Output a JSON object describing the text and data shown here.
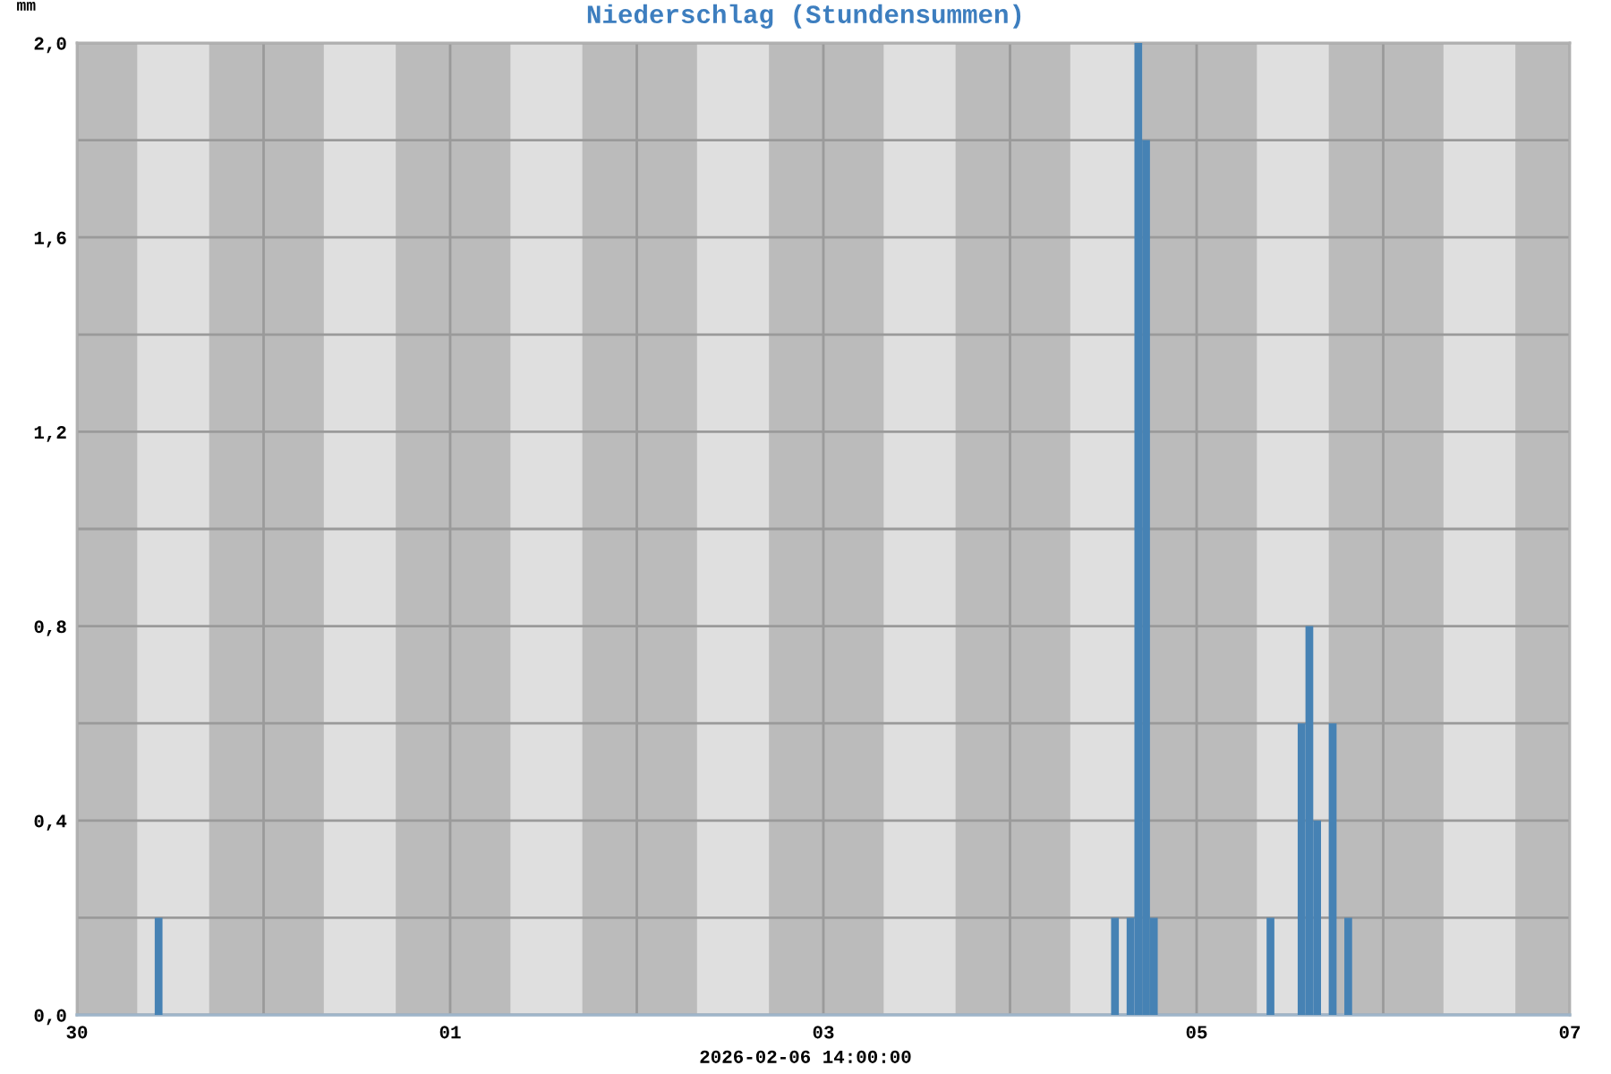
{
  "chart_data": {
    "type": "bar",
    "title": "Niederschlag (Stundensummen)",
    "ylabel": "mm",
    "annotations": [
      "2026-02-06 14:00:00"
    ],
    "x": [
      "2026-01-30T10:30",
      "2026-02-04T13:30",
      "2026-02-04T15:30",
      "2026-02-04T16:30",
      "2026-02-04T17:30",
      "2026-02-04T18:30",
      "2026-02-05T09:30",
      "2026-02-05T13:30",
      "2026-02-05T14:30",
      "2026-02-05T15:30",
      "2026-02-05T17:30",
      "2026-02-05T19:30"
    ],
    "values": [
      0.2,
      0.2,
      0.2,
      2.0,
      1.8,
      0.2,
      0.2,
      0.6,
      0.8,
      0.4,
      0.6,
      0.2
    ],
    "color": "#4682b4",
    "xlim": [
      "2026-01-30",
      "2026-02-07"
    ],
    "xticks": [
      {
        "value": "2026-01-30",
        "label": "30"
      },
      {
        "value": "2026-01-31",
        "label": null
      },
      {
        "value": "2026-02-01",
        "label": "01"
      },
      {
        "value": "2026-02-02",
        "label": null
      },
      {
        "value": "2026-02-03",
        "label": "03"
      },
      {
        "value": "2026-02-04",
        "label": null
      },
      {
        "value": "2026-02-05",
        "label": "05"
      },
      {
        "value": "2026-02-06",
        "label": null
      },
      {
        "value": "2026-02-07",
        "label": "07"
      }
    ],
    "ylim": [
      0,
      2
    ],
    "yticks": [
      {
        "value": 0,
        "label": "0,0"
      },
      {
        "value": 0.2,
        "label": null
      },
      {
        "value": 0.4,
        "label": "0,4"
      },
      {
        "value": 0.6,
        "label": null
      },
      {
        "value": 0.8,
        "label": "0,8"
      },
      {
        "value": 1.0,
        "label": null
      },
      {
        "value": 1.2,
        "label": "1,2"
      },
      {
        "value": 1.4,
        "label": null
      },
      {
        "value": 1.6,
        "label": "1,6"
      },
      {
        "value": 1.8,
        "label": null
      },
      {
        "value": 2.0,
        "label": "2,0"
      }
    ],
    "grid": true,
    "bands": [
      {
        "axis": "x",
        "from": "2026-01-30T00:00",
        "to": "2026-01-30T07:45",
        "color": "#bbbbbb"
      },
      {
        "axis": "x",
        "from": "2026-01-30T17:00",
        "to": "2026-01-31T07:45",
        "color": "#bbbbbb"
      },
      {
        "axis": "x",
        "from": "2026-01-31T17:00",
        "to": "2026-02-01T07:45",
        "color": "#bbbbbb"
      },
      {
        "axis": "x",
        "from": "2026-02-01T17:00",
        "to": "2026-02-02T07:45",
        "color": "#bbbbbb"
      },
      {
        "axis": "x",
        "from": "2026-02-02T17:00",
        "to": "2026-02-03T07:45",
        "color": "#bbbbbb"
      },
      {
        "axis": "x",
        "from": "2026-02-03T17:00",
        "to": "2026-02-04T07:45",
        "color": "#bbbbbb"
      },
      {
        "axis": "x",
        "from": "2026-02-04T17:00",
        "to": "2026-02-05T07:45",
        "color": "#bbbbbb"
      },
      {
        "axis": "x",
        "from": "2026-02-05T17:00",
        "to": "2026-02-06T07:45",
        "color": "#bbbbbb"
      },
      {
        "axis": "x",
        "from": "2026-02-06T17:00",
        "to": "2026-02-07T00:00",
        "color": "#bbbbbb"
      }
    ]
  }
}
